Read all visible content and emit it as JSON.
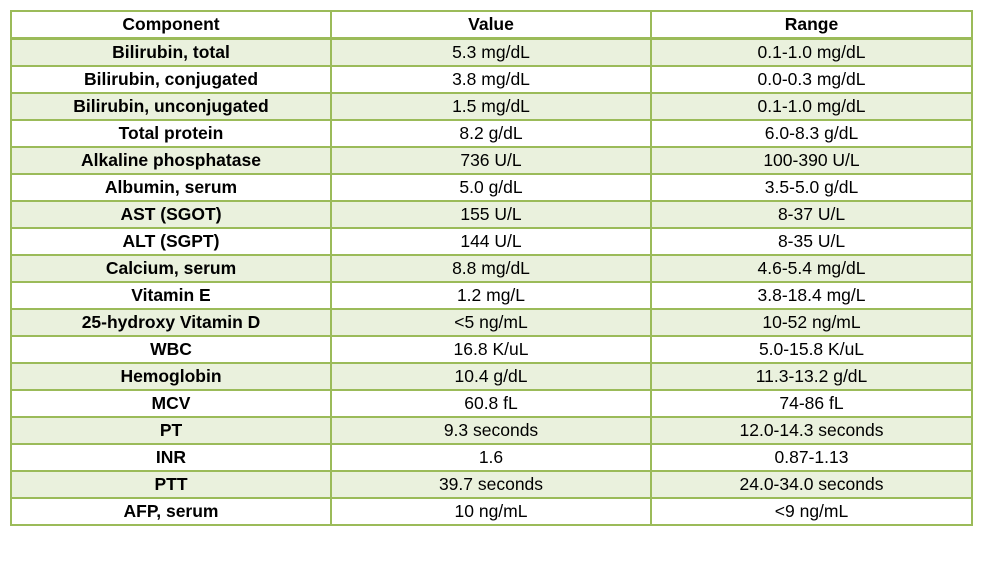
{
  "table": {
    "headers": [
      "Component",
      "Value",
      "Range"
    ],
    "rows": [
      {
        "component": "Bilirubin, total",
        "value": "5.3 mg/dL",
        "range": "0.1-1.0 mg/dL"
      },
      {
        "component": "Bilirubin, conjugated",
        "value": "3.8 mg/dL",
        "range": "0.0-0.3 mg/dL"
      },
      {
        "component": "Bilirubin, unconjugated",
        "value": "1.5 mg/dL",
        "range": "0.1-1.0 mg/dL"
      },
      {
        "component": "Total protein",
        "value": "8.2 g/dL",
        "range": "6.0-8.3 g/dL"
      },
      {
        "component": "Alkaline phosphatase",
        "value": "736 U/L",
        "range": "100-390 U/L"
      },
      {
        "component": "Albumin, serum",
        "value": "5.0 g/dL",
        "range": "3.5-5.0 g/dL"
      },
      {
        "component": "AST (SGOT)",
        "value": "155 U/L",
        "range": "8-37 U/L"
      },
      {
        "component": "ALT (SGPT)",
        "value": "144 U/L",
        "range": "8-35 U/L"
      },
      {
        "component": "Calcium, serum",
        "value": "8.8 mg/dL",
        "range": "4.6-5.4 mg/dL"
      },
      {
        "component": "Vitamin E",
        "value": "1.2 mg/L",
        "range": "3.8-18.4 mg/L"
      },
      {
        "component": "25-hydroxy Vitamin D",
        "value": "<5 ng/mL",
        "range": "10-52 ng/mL"
      },
      {
        "component": "WBC",
        "value": "16.8 K/uL",
        "range": "5.0-15.8 K/uL"
      },
      {
        "component": "Hemoglobin",
        "value": "10.4 g/dL",
        "range": "11.3-13.2 g/dL"
      },
      {
        "component": "MCV",
        "value": "60.8 fL",
        "range": "74-86 fL"
      },
      {
        "component": "PT",
        "value": "9.3 seconds",
        "range": "12.0-14.3 seconds"
      },
      {
        "component": "INR",
        "value": "1.6",
        "range": "0.87-1.13"
      },
      {
        "component": "PTT",
        "value": "39.7 seconds",
        "range": "24.0-34.0 seconds"
      },
      {
        "component": "AFP, serum",
        "value": "10 ng/mL",
        "range": "<9 ng/mL"
      }
    ]
  },
  "colors": {
    "border": "#9bbb59",
    "band": "#eaf1dd",
    "background": "#ffffff"
  }
}
